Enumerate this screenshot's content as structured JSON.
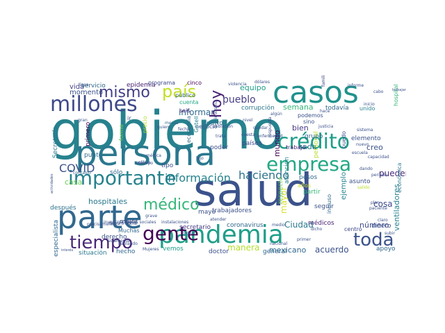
{
  "word_cloud": {
    "palette": {
      "dark_purple": "#440154",
      "navy": "#3b528b",
      "slate_blue": "#31688e",
      "teal_blue": "#26828e",
      "teal": "#1f9e89",
      "green": "#35b779",
      "light_green": "#6ece58",
      "lime": "#b5de2b",
      "yellow": "#d6e22b"
    },
    "words": [
      {
        "text": "gobierno",
        "color": "#26828e"
      },
      {
        "text": "salud",
        "color": "#3b528b"
      },
      {
        "text": "persona",
        "color": "#2a788e"
      },
      {
        "text": "pandemia",
        "color": "#1f9e89"
      },
      {
        "text": "parte",
        "color": "#31688e"
      },
      {
        "text": "casos",
        "color": "#21918c"
      },
      {
        "text": "millones",
        "color": "#3e4989"
      },
      {
        "text": "crédito",
        "color": "#1f9e89"
      },
      {
        "text": "empresa",
        "color": "#22a884"
      },
      {
        "text": "importante",
        "color": "#26828e"
      },
      {
        "text": "gente",
        "color": "#440154"
      },
      {
        "text": "tiempo",
        "color": "#482878"
      },
      {
        "text": "toda",
        "color": "#3b528b"
      },
      {
        "text": "médico",
        "color": "#35b779"
      },
      {
        "text": "país",
        "color": "#c2df23"
      },
      {
        "text": "mismo",
        "color": "#433e85"
      },
      {
        "text": "hoy",
        "color": "#482173"
      },
      {
        "text": "haciendo",
        "color": "#2c728e"
      },
      {
        "text": "información",
        "color": "#26828e"
      },
      {
        "text": "COVID",
        "color": "#3b528b"
      },
      {
        "text": "pueblo",
        "color": "#433e85"
      },
      {
        "text": "equipo",
        "color": "#1f9e89"
      },
      {
        "text": "informar",
        "color": "#31688e"
      },
      {
        "text": "hospitales",
        "color": "#2a788e"
      },
      {
        "text": "mayor",
        "color": "#d6e22b"
      },
      {
        "text": "manera",
        "color": "#b5de2b"
      },
      {
        "text": "acuerdo",
        "color": "#3b528b"
      },
      {
        "text": "mexicano",
        "color": "#31688e"
      },
      {
        "text": "Ciudad",
        "color": "#2a788e"
      },
      {
        "text": "cosa",
        "color": "#3e4989"
      },
      {
        "text": "pueden",
        "color": "#482878"
      },
      {
        "text": "ventiladores",
        "color": "#26828e"
      },
      {
        "text": "semana",
        "color": "#35b779"
      },
      {
        "text": "mundo",
        "color": "#440154"
      },
      {
        "text": "creo",
        "color": "#3b528b"
      },
      {
        "text": "bien",
        "color": "#443983"
      },
      {
        "text": "cada",
        "color": "#2c728e"
      },
      {
        "text": "número",
        "color": "#3e4989"
      },
      {
        "text": "casa",
        "color": "#6ece58"
      },
      {
        "text": "vida",
        "color": "#433e85"
      },
      {
        "text": "momento",
        "color": "#3b528b"
      },
      {
        "text": "servicio",
        "color": "#31688e"
      },
      {
        "text": "epidemia",
        "color": "#482173"
      },
      {
        "text": "programa",
        "color": "#3e4989"
      },
      {
        "text": "cinco",
        "color": "#440154"
      },
      {
        "text": "público",
        "color": "#31688e"
      },
      {
        "text": "cuenta",
        "color": "#22a884"
      },
      {
        "text": "seis",
        "color": "#482878"
      },
      {
        "text": "cuatro",
        "color": "#31688e"
      },
      {
        "text": "corrupción",
        "color": "#2a788e"
      },
      {
        "text": "todavía",
        "color": "#31688e"
      },
      {
        "text": "unido",
        "color": "#26828e"
      },
      {
        "text": "hospital",
        "color": "#35b779"
      },
      {
        "text": "trabajadores",
        "color": "#3b528b"
      },
      {
        "text": "secretario",
        "color": "#443983"
      },
      {
        "text": "coronavirus",
        "color": "#31688e"
      },
      {
        "text": "médicos",
        "color": "#482173"
      },
      {
        "text": "dinero",
        "color": "#3b528b"
      },
      {
        "text": "apoyo",
        "color": "#31688e"
      },
      {
        "text": "centro",
        "color": "#3e4989"
      },
      {
        "text": "general",
        "color": "#31688e"
      },
      {
        "text": "doctor",
        "color": "#3b528b"
      },
      {
        "text": "mayo",
        "color": "#3b528b"
      },
      {
        "text": "vemos",
        "color": "#1f9e89"
      },
      {
        "text": "situación",
        "color": "#2a788e"
      },
      {
        "text": "hecho",
        "color": "#31688e"
      },
      {
        "text": "después",
        "color": "#2c728e"
      },
      {
        "text": "especialista",
        "color": "#31688e"
      },
      {
        "text": "Secretaría",
        "color": "#2a788e"
      },
      {
        "text": "primero",
        "color": "#440154"
      },
      {
        "text": "punto",
        "color": "#31688e"
      },
      {
        "text": "forma",
        "color": "#6ece58"
      },
      {
        "text": "economía",
        "color": "#31688e"
      },
      {
        "text": "negocio",
        "color": "#3b528b"
      },
      {
        "text": "Gatell",
        "color": "#26828e"
      },
      {
        "text": "poder",
        "color": "#3b528b"
      },
      {
        "text": "países",
        "color": "#3e4989"
      },
      {
        "text": "trabajo",
        "color": "#482878"
      },
      {
        "text": "atención",
        "color": "#26828e"
      },
      {
        "text": "personal",
        "color": "#b5de2b"
      },
      {
        "text": "grupo",
        "color": "#31688e"
      },
      {
        "text": "puedo",
        "color": "#3b528b"
      },
      {
        "text": "podemos",
        "color": "#3b528b"
      },
      {
        "text": "sino",
        "color": "#3b528b"
      },
      {
        "text": "elemento",
        "color": "#3b528b"
      },
      {
        "text": "económica",
        "color": "#2a788e"
      },
      {
        "text": "pesos",
        "color": "#31688e"
      },
      {
        "text": "partir",
        "color": "#35b779"
      },
      {
        "text": "seguir",
        "color": "#3b528b"
      },
      {
        "text": "incluso",
        "color": "#31688e"
      },
      {
        "text": "ejemplo",
        "color": "#26828e"
      },
      {
        "text": "asunto",
        "color": "#3b528b"
      },
      {
        "text": "años",
        "color": "#d6e22b"
      },
      {
        "text": "respecto",
        "color": "#6ece58"
      },
      {
        "text": "derecho",
        "color": "#3b528b"
      },
      {
        "text": "Muchas",
        "color": "#31688e"
      },
      {
        "text": "mejor",
        "color": "#3b528b"
      },
      {
        "text": "tipo",
        "color": "#3b528b"
      },
      {
        "text": "sólo",
        "color": "#31688e"
      },
      {
        "text": "precio",
        "color": "#b5de2b"
      },
      {
        "text": "violencia",
        "color": "#3b528b"
      },
      {
        "text": "dólares",
        "color": "#3b528b"
      },
      {
        "text": "familiares",
        "color": "#3e4989"
      },
      {
        "text": "informe",
        "color": "#3b528b"
      },
      {
        "text": "nivel",
        "color": "#3b528b"
      },
      {
        "text": "meses",
        "color": "#31688e"
      },
      {
        "text": "industria",
        "color": "#3b528b"
      },
      {
        "text": "algún",
        "color": "#3b528b"
      },
      {
        "text": "contagio",
        "color": "#31688e"
      },
      {
        "text": "cabo",
        "color": "#3b528b"
      },
      {
        "text": "inicio",
        "color": "#3b528b"
      },
      {
        "text": "dando",
        "color": "#3b528b"
      },
      {
        "text": "salido",
        "color": "#b5de2b"
      },
      {
        "text": "escuela",
        "color": "#3b528b"
      },
      {
        "text": "política",
        "color": "#3b528b"
      },
      {
        "text": "médica",
        "color": "#3b528b"
      },
      {
        "text": "Mujeres",
        "color": "#3b528b"
      },
      {
        "text": "interés",
        "color": "#3b528b"
      },
      {
        "text": "hablando",
        "color": "#3b528b"
      },
      {
        "text": "grave",
        "color": "#3b528b"
      },
      {
        "text": "atender",
        "color": "#3b528b"
      },
      {
        "text": "primer",
        "color": "#3b528b"
      },
      {
        "text": "Seguro Social",
        "color": "#3b528b"
      },
      {
        "text": "investigación",
        "color": "#3b528b"
      },
      {
        "text": "redes sociales",
        "color": "#3b528b"
      },
      {
        "text": "instalaciones",
        "color": "#3b528b"
      },
      {
        "text": "gran",
        "color": "#3b528b"
      },
      {
        "text": "nuevo",
        "color": "#3b528b"
      },
      {
        "text": "población",
        "color": "#3b528b"
      },
      {
        "text": "trata",
        "color": "#3b528b"
      },
      {
        "text": "hijo",
        "color": "#3b528b"
      },
      {
        "text": "capacidad",
        "color": "#3b528b"
      },
      {
        "text": "período",
        "color": "#3b528b"
      },
      {
        "text": "actividades",
        "color": "#3b528b"
      },
      {
        "text": "trabajando",
        "color": "#3b528b"
      },
      {
        "text": "plan",
        "color": "#3b528b"
      },
      {
        "text": "paciente",
        "color": "#3b528b"
      },
      {
        "text": "medio",
        "color": "#3b528b"
      },
      {
        "text": "justicia",
        "color": "#3b528b"
      },
      {
        "text": "fecha",
        "color": "#3b528b"
      },
      {
        "text": "quiero",
        "color": "#3b528b"
      },
      {
        "text": "tiempo",
        "color": "#3b528b"
      },
      {
        "text": "cuesta",
        "color": "#3b528b"
      },
      {
        "text": "orden",
        "color": "#3b528b"
      },
      {
        "text": "nacional",
        "color": "#3b528b"
      },
      {
        "text": "quedar",
        "color": "#3b528b"
      },
      {
        "text": "sistema",
        "color": "#3b528b"
      },
      {
        "text": "hace",
        "color": "#3b528b"
      },
      {
        "text": "dicho",
        "color": "#3b528b"
      },
      {
        "text": "solamente",
        "color": "#3b528b"
      },
      {
        "text": "precisamente",
        "color": "#3b528b"
      },
      {
        "text": "respuesta",
        "color": "#3b528b"
      },
      {
        "text": "enfermedad",
        "color": "#3b528b"
      },
      {
        "text": "ir",
        "color": "#3b528b"
      },
      {
        "text": "subir",
        "color": "#3b528b"
      },
      {
        "text": "línea",
        "color": "#3b528b"
      },
      {
        "text": "claro",
        "color": "#3b528b"
      }
    ]
  }
}
